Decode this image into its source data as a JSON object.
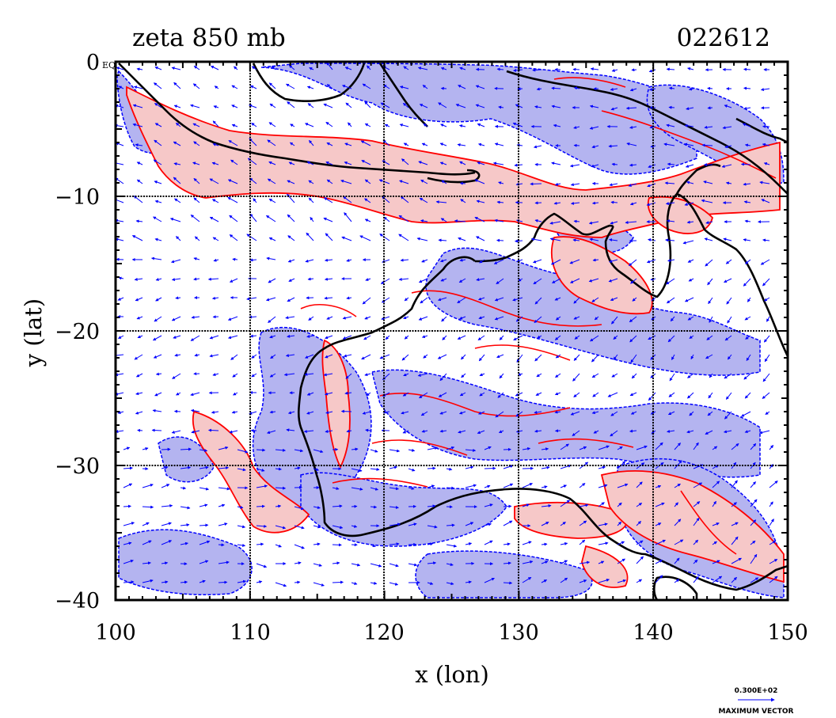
{
  "header": {
    "title": "zeta 850 mb",
    "timestamp": "022612"
  },
  "axes": {
    "x_label": "x (lon)",
    "y_label": "y (lat)",
    "x_ticks": [
      "100",
      "110",
      "120",
      "130",
      "140",
      "150"
    ],
    "y_ticks": [
      "0",
      "−10",
      "−20",
      "−30",
      "−40"
    ],
    "eq_marker": "EQ",
    "x_range": [
      100,
      150
    ],
    "y_range": [
      -40,
      0
    ],
    "gridlines": true
  },
  "legend": {
    "vector_magnitude": "0.300E+02",
    "vector_label": "MAXIMUM VECTOR"
  },
  "colors": {
    "positive_fill": "#f6c8c8",
    "positive_line": "#ff0000",
    "negative_fill": "#b4b4f0",
    "negative_line": "#0000ff",
    "vector": "#0000ff",
    "coast": "#000000",
    "grid": "#000000"
  },
  "map": {
    "region": "Australia and Maritime Continent",
    "field": "850 mb relative vorticity with wind vectors"
  }
}
